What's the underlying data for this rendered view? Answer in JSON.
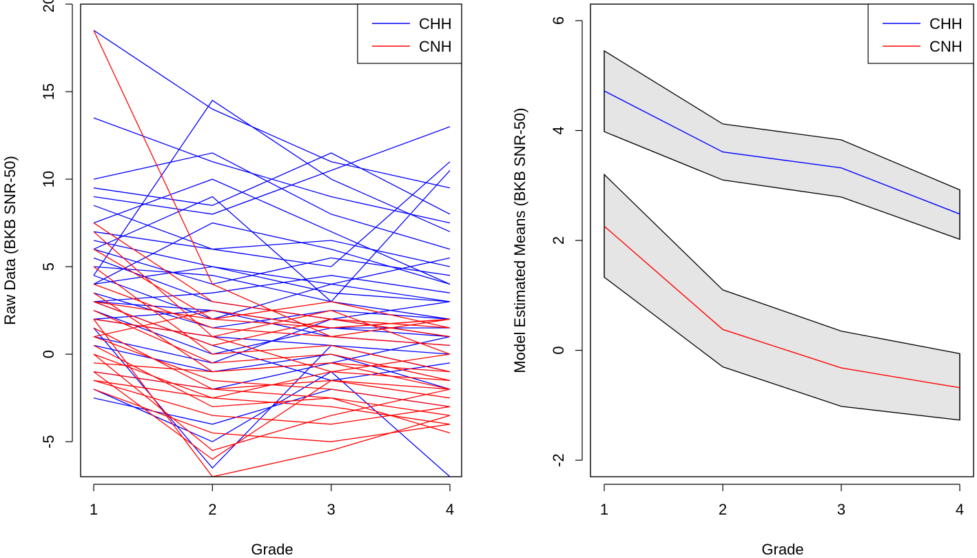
{
  "chart_data": [
    {
      "type": "line",
      "title": "",
      "xlabel": "Grade",
      "ylabel": "Raw Data (BKB SNR-50)",
      "x": [
        1,
        2,
        3,
        4
      ],
      "xlim": [
        1,
        4
      ],
      "ylim": [
        -7,
        20
      ],
      "xticks": [
        "1",
        "2",
        "3",
        "4"
      ],
      "yticks": [
        "-5",
        "0",
        "5",
        "10",
        "15",
        "20"
      ],
      "grid": false,
      "legend": {
        "position": "top-right",
        "entries": [
          {
            "name": "CHH",
            "color": "#0000ff"
          },
          {
            "name": "CNH",
            "color": "#ff0000"
          }
        ]
      },
      "series": [
        {
          "name": "CHH",
          "color": "#0000ff",
          "trajectories": [
            [
              18.5,
              14,
              11,
              9.5
            ],
            [
              13.5,
              11,
              9,
              7.5
            ],
            [
              10,
              11.5,
              8,
              6
            ],
            [
              9.5,
              8.5,
              11.5,
              8
            ],
            [
              9,
              8,
              10.5,
              13
            ],
            [
              8.5,
              6,
              6.5,
              5
            ],
            [
              7.5,
              10,
              7,
              4
            ],
            [
              7,
              6,
              5,
              11
            ],
            [
              6.5,
              5,
              4,
              3
            ],
            [
              6,
              4,
              5.5,
              4.5
            ],
            [
              5.5,
              3,
              2,
              1
            ],
            [
              5,
              4.5,
              3,
              2
            ],
            [
              4.5,
              2,
              4,
              5.5
            ],
            [
              4,
              5,
              3.5,
              3
            ],
            [
              3.5,
              1.5,
              2.5,
              2
            ],
            [
              3,
              2.5,
              1,
              0.5
            ],
            [
              2.5,
              0,
              1.5,
              1
            ],
            [
              2,
              1,
              0.5,
              -1
            ],
            [
              1,
              -0.5,
              2,
              3
            ],
            [
              0.5,
              -1,
              0,
              -2
            ],
            [
              -1,
              -2,
              -0.5,
              1
            ],
            [
              -2,
              -5,
              -1,
              -7
            ],
            [
              -2.5,
              -4,
              -2,
              -3
            ],
            [
              4.5,
              14.5,
              10,
              7
            ],
            [
              6,
              9,
              3,
              10.5
            ],
            [
              3,
              3.5,
              4.5,
              3.5
            ],
            [
              2,
              2.5,
              1.5,
              1.5
            ],
            [
              1.5,
              -6.5,
              0.5,
              0
            ],
            [
              4,
              7.5,
              6,
              4
            ],
            [
              3,
              0.5,
              -1.5,
              -0.5
            ]
          ]
        },
        {
          "name": "CNH",
          "color": "#ff0000",
          "trajectories": [
            [
              18.5,
              4,
              1,
              2
            ],
            [
              7.5,
              3,
              2,
              1
            ],
            [
              7,
              1,
              2.5,
              0
            ],
            [
              6,
              2,
              1.5,
              2
            ],
            [
              5,
              0,
              0.5,
              -1
            ],
            [
              4,
              1.5,
              1,
              0.5
            ],
            [
              3.5,
              -1,
              -0.5,
              -2
            ],
            [
              3,
              0.5,
              2,
              1.5
            ],
            [
              2.5,
              -0.5,
              0,
              -1.5
            ],
            [
              2,
              1,
              -1,
              0
            ],
            [
              1.5,
              -2,
              -1.5,
              -2.5
            ],
            [
              1,
              -1.5,
              -2,
              -3
            ],
            [
              0.5,
              -3,
              -2.5,
              -3.5
            ],
            [
              0,
              -2.5,
              -3,
              -4
            ],
            [
              -0.5,
              -1,
              -0.5,
              -1
            ],
            [
              -1,
              -2,
              -2.5,
              -4.5
            ],
            [
              -1.5,
              -3.5,
              -4,
              -3
            ],
            [
              -2,
              -4.5,
              -5,
              -4
            ],
            [
              -1,
              -6,
              -1.5,
              -2
            ],
            [
              2,
              -7,
              -5.5,
              -3.5
            ],
            [
              1,
              2.5,
              1.5,
              2
            ],
            [
              3,
              2,
              3,
              1.5
            ],
            [
              0,
              -5.5,
              -3.5,
              -2
            ],
            [
              -1.5,
              -2.5,
              -1,
              -1.5
            ]
          ]
        }
      ]
    },
    {
      "type": "line",
      "title": "",
      "xlabel": "Grade",
      "ylabel": "Model Estimated Means (BKB SNR-50)",
      "x": [
        1,
        2,
        3,
        4
      ],
      "xlim": [
        1,
        4
      ],
      "ylim": [
        -2.3,
        6.3
      ],
      "xticks": [
        "1",
        "2",
        "3",
        "4"
      ],
      "yticks": [
        "-2",
        "0",
        "2",
        "4",
        "6"
      ],
      "grid": false,
      "band_color": "#e5e5e5",
      "legend": {
        "position": "top-right",
        "entries": [
          {
            "name": "CHH",
            "color": "#0000ff"
          },
          {
            "name": "CNH",
            "color": "#ff0000"
          }
        ]
      },
      "series": [
        {
          "name": "CHH",
          "color": "#0000ff",
          "values": [
            4.72,
            3.61,
            3.32,
            2.48
          ],
          "upper": [
            5.45,
            4.12,
            3.83,
            2.92
          ],
          "lower": [
            3.98,
            3.1,
            2.79,
            2.02
          ]
        },
        {
          "name": "CNH",
          "color": "#ff0000",
          "values": [
            2.26,
            0.38,
            -0.32,
            -0.68
          ],
          "upper": [
            3.2,
            1.1,
            0.35,
            -0.06
          ],
          "lower": [
            1.33,
            -0.3,
            -1.02,
            -1.27
          ]
        }
      ]
    }
  ]
}
